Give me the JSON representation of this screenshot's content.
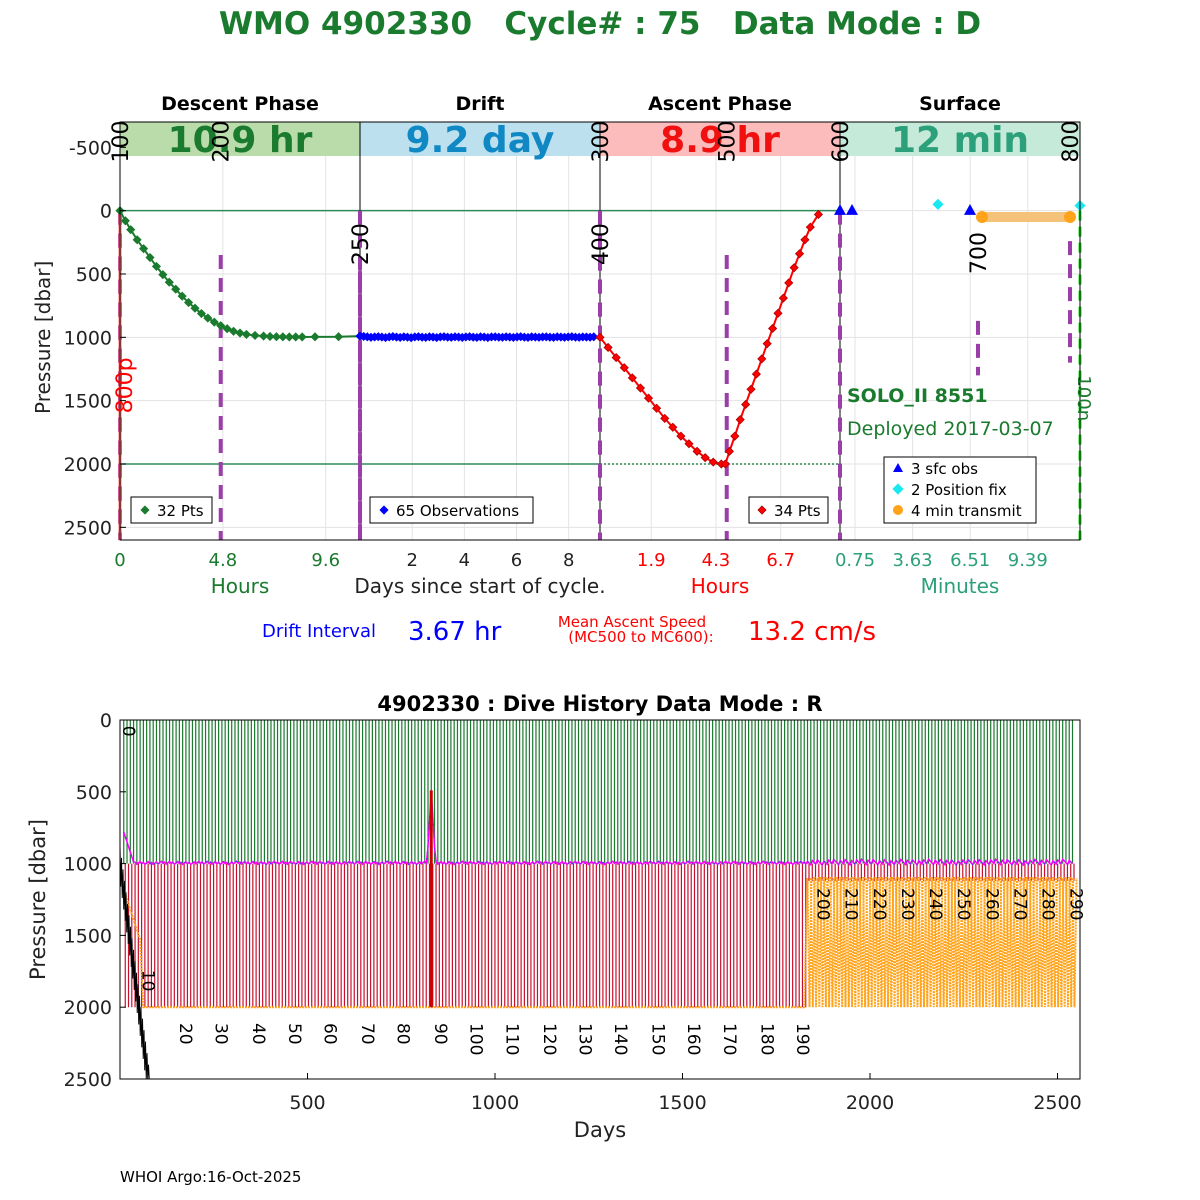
{
  "page_title": "WMO 4902330   Cycle# : 75   Data Mode : D",
  "footer": "WHOI Argo:16-Oct-2025",
  "colors": {
    "title_green": "#1a7a2e",
    "descent": "#1a7a2e",
    "drift": "#0000ff",
    "ascent": "#ff0000",
    "surface": "#2ca07a",
    "purple": "#9b3fa8",
    "orange": "#ffa31a",
    "cyan": "#18e8f0",
    "magenta": "#ff00ff",
    "dark_red": "#8b0000"
  },
  "chart_data": [
    {
      "type": "line",
      "name": "cycle-profile",
      "ylabel": "Pressure [dbar]",
      "ylim": [
        -700,
        2600
      ],
      "yticks": [
        -500,
        0,
        500,
        1000,
        1500,
        2000,
        2500
      ],
      "phases": [
        {
          "name": "Descent Phase",
          "duration": "10.9 hr",
          "band_color": "#b9dcaa",
          "text_color": "#1a7a2e"
        },
        {
          "name": "Drift",
          "duration": "9.2 day",
          "band_color": "#bde0ef",
          "text_color": "#0f88c3"
        },
        {
          "name": "Ascent Phase",
          "duration": "8.9 hr",
          "band_color": "#fcbcbc",
          "text_color": "#f01010"
        },
        {
          "name": "Surface",
          "duration": "12 min",
          "band_color": "#c5ead9",
          "text_color": "#2ca07a"
        }
      ],
      "x_ticks": [
        {
          "phase": 0,
          "labels": [
            "0",
            "4.8",
            "9.6"
          ],
          "positions": [
            0,
            4.8,
            9.6
          ],
          "range": [
            0,
            11.2
          ],
          "unit": "Hours"
        },
        {
          "phase": 1,
          "labels": [
            "2",
            "4",
            "6",
            "8"
          ],
          "positions": [
            2,
            4,
            6,
            8
          ],
          "range": [
            0,
            9.2
          ]
        },
        {
          "phase": 2,
          "labels": [
            "1.9",
            "4.3",
            "6.7"
          ],
          "positions": [
            1.9,
            4.3,
            6.7
          ],
          "range": [
            0,
            8.9
          ],
          "unit": "Hours"
        },
        {
          "phase": 3,
          "labels": [
            "0.75",
            "3.63",
            "6.51",
            "9.39"
          ],
          "positions": [
            0.75,
            3.63,
            6.51,
            9.39
          ],
          "range": [
            0,
            12
          ],
          "unit": "Minutes"
        }
      ],
      "xlabel_center": "Days since start of cycle.",
      "mc_markers": [
        {
          "label": "100",
          "phase": 0,
          "t": 0,
          "label_pressure": -380
        },
        {
          "label": "200",
          "phase": 0,
          "t": 4.7,
          "label_pressure": -380
        },
        {
          "label": "250",
          "phase": 1,
          "t": 0,
          "label_pressure": 430
        },
        {
          "label": "300",
          "phase": 2,
          "t": 0,
          "label_pressure": -380
        },
        {
          "label": "400",
          "phase": 2,
          "t": 0,
          "label_pressure": 430
        },
        {
          "label": "500",
          "phase": 2,
          "t": 4.7,
          "label_pressure": -380
        },
        {
          "label": "600",
          "phase": 3,
          "t": 0,
          "label_pressure": -380
        },
        {
          "label": "700",
          "phase": 3,
          "t": 6.9,
          "label_pressure": 500
        },
        {
          "label": "800",
          "phase": 3,
          "t": 11.5,
          "label_pressure": -380
        }
      ],
      "label_800p": "800p",
      "label_100n": "100n",
      "park_pressure": 1000,
      "profile_pressure": 2000,
      "descent_points": [
        [
          0,
          0
        ],
        [
          0.25,
          80
        ],
        [
          0.5,
          150
        ],
        [
          0.8,
          230
        ],
        [
          1.1,
          300
        ],
        [
          1.4,
          370
        ],
        [
          1.7,
          440
        ],
        [
          2.0,
          505
        ],
        [
          2.3,
          565
        ],
        [
          2.6,
          620
        ],
        [
          2.9,
          675
        ],
        [
          3.2,
          725
        ],
        [
          3.5,
          770
        ],
        [
          3.8,
          812
        ],
        [
          4.1,
          848
        ],
        [
          4.4,
          880
        ],
        [
          4.7,
          908
        ],
        [
          5.0,
          932
        ],
        [
          5.3,
          952
        ],
        [
          5.6,
          966
        ],
        [
          5.9,
          977
        ],
        [
          6.3,
          985
        ],
        [
          6.7,
          990
        ],
        [
          7.0,
          993
        ],
        [
          7.3,
          995
        ],
        [
          7.6,
          996
        ],
        [
          7.9,
          997
        ],
        [
          8.2,
          997
        ],
        [
          8.5,
          997
        ],
        [
          9.1,
          996
        ],
        [
          10.2,
          995
        ],
        [
          11.2,
          990
        ]
      ],
      "descent_legend": "32 Pts",
      "drift_points": [
        [
          0,
          990
        ],
        [
          0.14,
          993
        ],
        [
          0.28,
          996
        ],
        [
          0.42,
          1000
        ],
        [
          0.56,
          997
        ],
        [
          0.7,
          995
        ],
        [
          0.84,
          998
        ],
        [
          0.98,
          1002
        ],
        [
          1.12,
          997
        ],
        [
          1.26,
          994
        ],
        [
          1.4,
          998
        ],
        [
          1.54,
          1001
        ],
        [
          1.68,
          996
        ],
        [
          1.82,
          999
        ],
        [
          1.96,
          1003
        ],
        [
          2.1,
          997
        ],
        [
          2.24,
          995
        ],
        [
          2.38,
          999
        ],
        [
          2.52,
          1001
        ],
        [
          2.66,
          996
        ],
        [
          2.8,
          998
        ],
        [
          2.94,
          1002
        ],
        [
          3.08,
          997
        ],
        [
          3.22,
          995
        ],
        [
          3.36,
          999
        ],
        [
          3.5,
          1000
        ],
        [
          3.64,
          996
        ],
        [
          3.78,
          998
        ],
        [
          3.92,
          1001
        ],
        [
          4.06,
          997
        ],
        [
          4.2,
          995
        ],
        [
          4.34,
          999
        ],
        [
          4.48,
          1001
        ],
        [
          4.62,
          996
        ],
        [
          4.76,
          998
        ],
        [
          4.9,
          1002
        ],
        [
          5.04,
          997
        ],
        [
          5.18,
          996
        ],
        [
          5.32,
          999
        ],
        [
          5.46,
          1000
        ],
        [
          5.6,
          996
        ],
        [
          5.74,
          998
        ],
        [
          5.88,
          1001
        ],
        [
          6.02,
          997
        ],
        [
          6.16,
          995
        ],
        [
          6.3,
          999
        ],
        [
          6.44,
          1001
        ],
        [
          6.58,
          996
        ],
        [
          6.72,
          998
        ],
        [
          6.86,
          1000
        ],
        [
          7.0,
          997
        ],
        [
          7.14,
          996
        ],
        [
          7.28,
          999
        ],
        [
          7.42,
          1001
        ],
        [
          7.56,
          996
        ],
        [
          7.7,
          998
        ],
        [
          7.84,
          1000
        ],
        [
          7.98,
          997
        ],
        [
          8.12,
          995
        ],
        [
          8.26,
          999
        ],
        [
          8.4,
          1000
        ],
        [
          8.54,
          997
        ],
        [
          8.68,
          998
        ],
        [
          8.82,
          999
        ],
        [
          8.96,
          996
        ]
      ],
      "drift_legend": "65 Observations",
      "ascent_points": [
        [
          0,
          1000
        ],
        [
          0.3,
          1080
        ],
        [
          0.6,
          1160
        ],
        [
          0.9,
          1240
        ],
        [
          1.2,
          1320
        ],
        [
          1.5,
          1400
        ],
        [
          1.8,
          1480
        ],
        [
          2.1,
          1560
        ],
        [
          2.4,
          1640
        ],
        [
          2.7,
          1710
        ],
        [
          3.0,
          1780
        ],
        [
          3.3,
          1840
        ],
        [
          3.6,
          1900
        ],
        [
          3.9,
          1950
        ],
        [
          4.2,
          1985
        ],
        [
          4.5,
          2000
        ],
        [
          4.65,
          2000
        ],
        [
          4.8,
          1900
        ],
        [
          5.0,
          1780
        ],
        [
          5.2,
          1650
        ],
        [
          5.4,
          1530
        ],
        [
          5.6,
          1410
        ],
        [
          5.8,
          1290
        ],
        [
          6.0,
          1170
        ],
        [
          6.2,
          1050
        ],
        [
          6.4,
          930
        ],
        [
          6.6,
          810
        ],
        [
          6.8,
          690
        ],
        [
          7.0,
          570
        ],
        [
          7.2,
          450
        ],
        [
          7.4,
          340
        ],
        [
          7.6,
          230
        ],
        [
          7.8,
          130
        ],
        [
          8.1,
          30
        ]
      ],
      "ascent_legend": "34 Pts",
      "surface_obs": [
        [
          0,
          -5
        ],
        [
          0.6,
          -5
        ],
        [
          6.5,
          -5
        ]
      ],
      "position_fix": [
        [
          4.9,
          -50
        ],
        [
          12.0,
          -40
        ]
      ],
      "transmit": [
        [
          7.1,
          50
        ],
        [
          11.5,
          50
        ]
      ],
      "surface_legend": [
        "3 sfc obs",
        "2 Position fix",
        "4 min transmit"
      ],
      "float_id": "SOLO_II 8551",
      "deployed": "Deployed 2017-03-07",
      "drift_interval_label": "Drift Interval",
      "drift_interval_value": "3.67 hr",
      "ascent_speed_label_1": "Mean Ascent Speed",
      "ascent_speed_label_2": "(MC500 to MC600):",
      "ascent_speed_value": "13.2 cm/s"
    },
    {
      "type": "bar",
      "name": "dive-history",
      "title": "4902330 : Dive History      Data Mode : R",
      "xlabel": "Days",
      "ylabel": "Pressure [dbar]",
      "xlim": [
        0,
        2560
      ],
      "ylim": [
        0,
        2500
      ],
      "xticks": [
        500,
        1000,
        1500,
        2000,
        2500
      ],
      "yticks": [
        0,
        500,
        1000,
        1500,
        2000,
        2500
      ],
      "cycle_interval_days": 10,
      "cycles_shown": 290,
      "deep_profile_depth": 2000,
      "park_depth": 1000,
      "mode_change_day": 1830,
      "spike": {
        "day": 830,
        "pressure": 490
      },
      "cycle_labels": [
        {
          "label": "0",
          "day": 8,
          "pressure": 40
        },
        {
          "label": "10",
          "day": 60,
          "pressure": 1740
        },
        {
          "label": "20",
          "day": 160,
          "pressure": 2110
        },
        {
          "label": "30",
          "day": 255,
          "pressure": 2110
        },
        {
          "label": "40",
          "day": 355,
          "pressure": 2110
        },
        {
          "label": "50",
          "day": 450,
          "pressure": 2110
        },
        {
          "label": "60",
          "day": 545,
          "pressure": 2110
        },
        {
          "label": "70",
          "day": 645,
          "pressure": 2110
        },
        {
          "label": "80",
          "day": 740,
          "pressure": 2110
        },
        {
          "label": "90",
          "day": 840,
          "pressure": 2110
        },
        {
          "label": "100",
          "day": 935,
          "pressure": 2110
        },
        {
          "label": "110",
          "day": 1030,
          "pressure": 2110
        },
        {
          "label": "120",
          "day": 1130,
          "pressure": 2110
        },
        {
          "label": "130",
          "day": 1225,
          "pressure": 2110
        },
        {
          "label": "140",
          "day": 1320,
          "pressure": 2110
        },
        {
          "label": "150",
          "day": 1420,
          "pressure": 2110
        },
        {
          "label": "160",
          "day": 1515,
          "pressure": 2110
        },
        {
          "label": "170",
          "day": 1610,
          "pressure": 2110
        },
        {
          "label": "180",
          "day": 1710,
          "pressure": 2110
        },
        {
          "label": "190",
          "day": 1805,
          "pressure": 2110
        },
        {
          "label": "200",
          "day": 1860,
          "pressure": 1170
        },
        {
          "label": "210",
          "day": 1935,
          "pressure": 1170
        },
        {
          "label": "220",
          "day": 2010,
          "pressure": 1170
        },
        {
          "label": "230",
          "day": 2085,
          "pressure": 1170
        },
        {
          "label": "240",
          "day": 2160,
          "pressure": 1170
        },
        {
          "label": "250",
          "day": 2235,
          "pressure": 1170
        },
        {
          "label": "260",
          "day": 2310,
          "pressure": 1170
        },
        {
          "label": "270",
          "day": 2385,
          "pressure": 1170
        },
        {
          "label": "280",
          "day": 2460,
          "pressure": 1170
        },
        {
          "label": "290",
          "day": 2535,
          "pressure": 1170
        }
      ]
    }
  ]
}
